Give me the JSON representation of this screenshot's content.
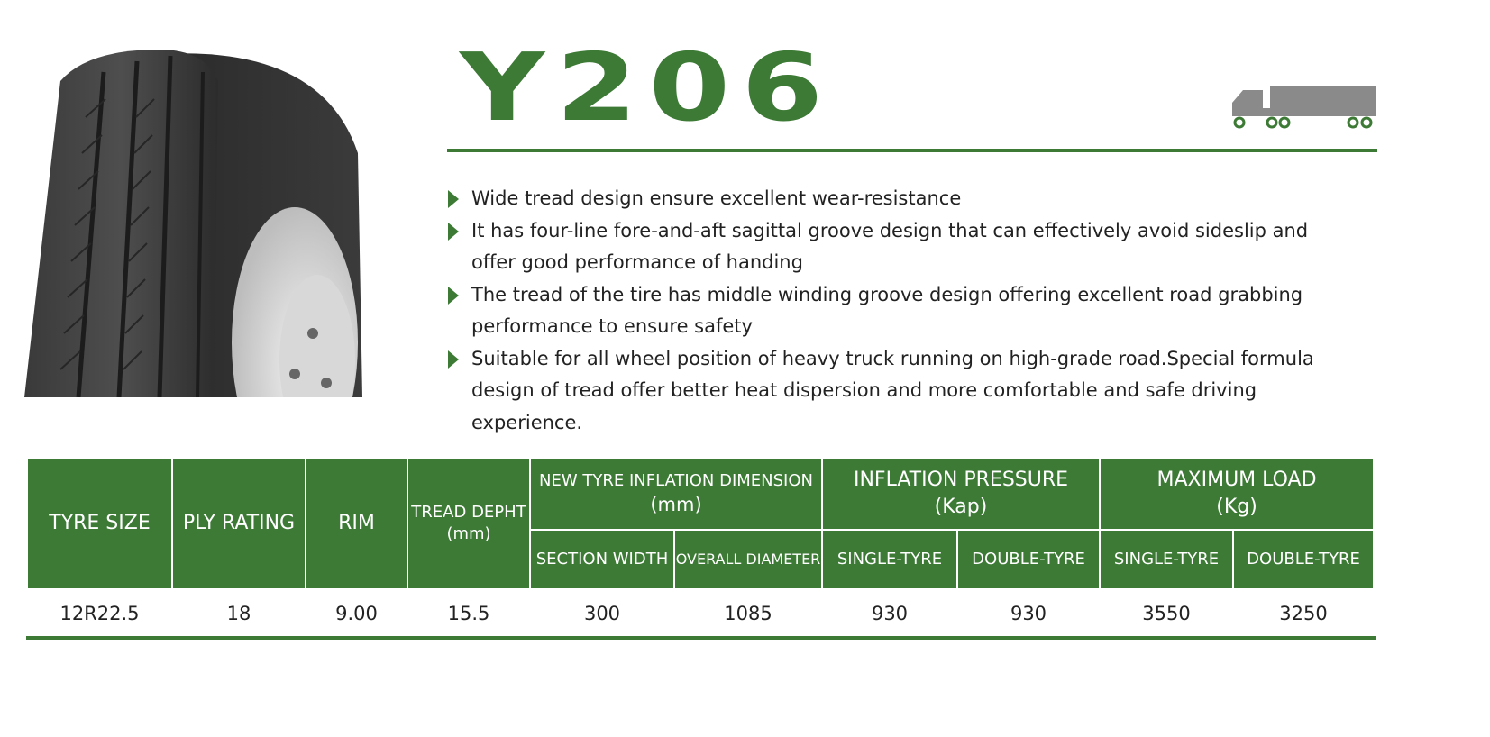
{
  "product": {
    "model": "Y206"
  },
  "icons": {
    "vehicle": "truck-trailer-icon",
    "bullet": "triangle-bullet-icon"
  },
  "colors": {
    "brand_green": "#3c7a35",
    "icon_gray": "#8a8a8a"
  },
  "features": [
    {
      "line1": "Wide tread design ensure excellent wear-resistance",
      "line2": "",
      "line3": ""
    },
    {
      "line1": "It has four-line fore-and-aft sagittal groove design that can effectively avoid sideslip and",
      "line2": "offer good performance of handing",
      "line3": ""
    },
    {
      "line1": "The tread of the tire has middle winding groove design offering excellent road grabbing",
      "line2": "performance to ensure safety",
      "line3": ""
    },
    {
      "line1": "Suitable for all wheel position of heavy truck running on high-grade road.Special formula",
      "line2": "design of tread offer better heat dispersion and more comfortable and safe driving",
      "line3": "experience."
    }
  ],
  "table": {
    "headers": {
      "tyre_size": "TYRE SIZE",
      "ply_rating": "PLY RATING",
      "rim": "RIM",
      "tread_depth_1": "TREAD DEPHT",
      "tread_depth_2": "(mm)",
      "new_tyre_1": "NEW TYRE INFLATION DIMENSION",
      "new_tyre_2": "(mm)",
      "pressure_1": "INFLATION PRESSURE",
      "pressure_2": "(Kap)",
      "load_1": "MAXIMUM LOAD",
      "load_2": "(Kg)",
      "section_width": "SECTION WIDTH",
      "overall_diameter": "OVERALL DIAMETER",
      "pressure_single": "SINGLE-TYRE",
      "pressure_double": "DOUBLE-TYRE",
      "load_single": "SINGLE-TYRE",
      "load_double": "DOUBLE-TYRE"
    },
    "rows": [
      {
        "tyre_size": "12R22.5",
        "ply_rating": "18",
        "rim": "9.00",
        "tread_depth": "15.5",
        "section_width": "300",
        "overall_diameter": "1085",
        "pressure_single": "930",
        "pressure_double": "930",
        "load_single": "3550",
        "load_double": "3250"
      }
    ]
  }
}
